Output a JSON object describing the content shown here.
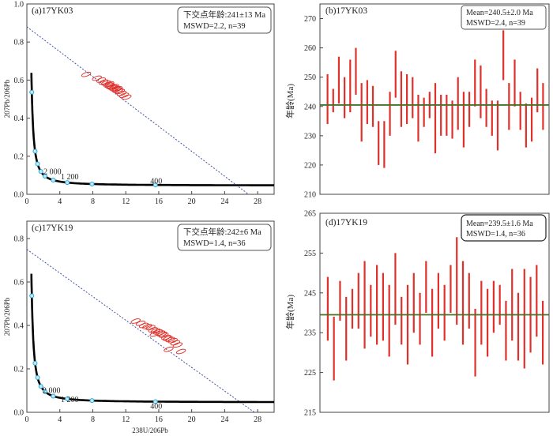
{
  "chart_data": [
    {
      "id": "a",
      "type": "scatter",
      "panel_label": "(a)17YK03",
      "box_lines": [
        "下交点年龄:241±13 Ma",
        "MSWD=2.2, n=39"
      ],
      "ylabel": "207Pb/206Pb",
      "xlabel": "",
      "xlim": [
        0,
        30
      ],
      "ylim": [
        0,
        1.0
      ],
      "xticks": [
        0,
        4,
        8,
        12,
        16,
        20,
        24,
        28
      ],
      "yticks": [
        0.0,
        0.2,
        0.4,
        0.6,
        0.8,
        1.0
      ],
      "ytick_labels": [
        "0.0",
        "0.2",
        "0.4",
        "0.6",
        "0.8",
        "1.0"
      ],
      "concordia_labels": [
        {
          "text": "2 000",
          "x": 3.1,
          "y": 0.105
        },
        {
          "text": "1 200",
          "x": 5.2,
          "y": 0.078
        },
        {
          "text": "400",
          "x": 15.7,
          "y": 0.055
        }
      ],
      "discordia": {
        "x": [
          0,
          26.9
        ],
        "y": [
          0.88,
          0
        ]
      },
      "ellipses": [
        {
          "x": 8.5,
          "y": 0.61
        },
        {
          "x": 9.0,
          "y": 0.6
        },
        {
          "x": 9.3,
          "y": 0.59
        },
        {
          "x": 9.6,
          "y": 0.585
        },
        {
          "x": 9.9,
          "y": 0.575
        },
        {
          "x": 10.1,
          "y": 0.57
        },
        {
          "x": 10.3,
          "y": 0.565
        },
        {
          "x": 10.5,
          "y": 0.56
        },
        {
          "x": 10.7,
          "y": 0.555
        },
        {
          "x": 10.9,
          "y": 0.55
        },
        {
          "x": 11.1,
          "y": 0.545
        },
        {
          "x": 11.3,
          "y": 0.54
        },
        {
          "x": 11.5,
          "y": 0.53
        },
        {
          "x": 11.8,
          "y": 0.52
        },
        {
          "x": 12.1,
          "y": 0.51
        },
        {
          "x": 10.0,
          "y": 0.58
        },
        {
          "x": 10.6,
          "y": 0.565
        },
        {
          "x": 11.0,
          "y": 0.555
        },
        {
          "x": 7.2,
          "y": 0.63
        }
      ]
    },
    {
      "id": "b",
      "type": "bar",
      "panel_label": "(b)17YK03",
      "box_lines": [
        "Mean=240.5±2.0 Ma",
        "MSWD=2.4, n=39"
      ],
      "ylabel": "年龄(Ma)",
      "ylim": [
        210,
        275
      ],
      "yticks": [
        210,
        220,
        230,
        240,
        250,
        260,
        270
      ],
      "mean": 240.5,
      "bars": [
        [
          234,
          251
        ],
        [
          238,
          246
        ],
        [
          241,
          257
        ],
        [
          236,
          250
        ],
        [
          238,
          256
        ],
        [
          244,
          260
        ],
        [
          228,
          248
        ],
        [
          234,
          249
        ],
        [
          233,
          247
        ],
        [
          220,
          235
        ],
        [
          219,
          235
        ],
        [
          230,
          245
        ],
        [
          243,
          259
        ],
        [
          233,
          252
        ],
        [
          234,
          251
        ],
        [
          236,
          250
        ],
        [
          228,
          244
        ],
        [
          233,
          243
        ],
        [
          236,
          245
        ],
        [
          224,
          248
        ],
        [
          230,
          244
        ],
        [
          230,
          244
        ],
        [
          229,
          242
        ],
        [
          232,
          250
        ],
        [
          226,
          245
        ],
        [
          233,
          245
        ],
        [
          240,
          256
        ],
        [
          236,
          254
        ],
        [
          233,
          246
        ],
        [
          230,
          242
        ],
        [
          225,
          242
        ],
        [
          249,
          266
        ],
        [
          232,
          248
        ],
        [
          240,
          256
        ],
        [
          232,
          245
        ],
        [
          226,
          241
        ],
        [
          228,
          243
        ],
        [
          238,
          253
        ],
        [
          232,
          248
        ]
      ]
    },
    {
      "id": "c",
      "type": "scatter",
      "panel_label": "(c)17YK19",
      "box_lines": [
        "下交点年龄:242±6 Ma",
        "MSWD=1.4, n=36"
      ],
      "ylabel": "207Pb/206Pb",
      "xlabel": "238U/206Pb",
      "xlim": [
        0,
        30
      ],
      "ylim": [
        0,
        0.88
      ],
      "xticks": [
        0,
        4,
        8,
        12,
        16,
        20,
        24,
        28
      ],
      "yticks": [
        0.0,
        0.2,
        0.4,
        0.6,
        0.8
      ],
      "ytick_labels": [
        "0.0",
        "0.2",
        "0.4",
        "0.6",
        "0.8"
      ],
      "concordia_labels": [
        {
          "text": "2 000",
          "x": 3.0,
          "y": 0.09
        },
        {
          "text": "1 200",
          "x": 5.2,
          "y": 0.047
        },
        {
          "text": "400",
          "x": 15.7,
          "y": 0.017
        }
      ],
      "discordia": {
        "x": [
          0,
          27.6
        ],
        "y": [
          0.75,
          0
        ]
      },
      "ellipses": [
        {
          "x": 13.2,
          "y": 0.42
        },
        {
          "x": 13.8,
          "y": 0.41
        },
        {
          "x": 14.2,
          "y": 0.4
        },
        {
          "x": 14.6,
          "y": 0.395
        },
        {
          "x": 15.0,
          "y": 0.39
        },
        {
          "x": 15.3,
          "y": 0.38
        },
        {
          "x": 15.6,
          "y": 0.375
        },
        {
          "x": 15.9,
          "y": 0.37
        },
        {
          "x": 16.2,
          "y": 0.365
        },
        {
          "x": 16.4,
          "y": 0.36
        },
        {
          "x": 16.6,
          "y": 0.355
        },
        {
          "x": 16.9,
          "y": 0.345
        },
        {
          "x": 17.1,
          "y": 0.34
        },
        {
          "x": 17.4,
          "y": 0.335
        },
        {
          "x": 17.7,
          "y": 0.33
        },
        {
          "x": 18.0,
          "y": 0.32
        },
        {
          "x": 18.3,
          "y": 0.31
        },
        {
          "x": 18.7,
          "y": 0.28
        },
        {
          "x": 17.2,
          "y": 0.29
        },
        {
          "x": 15.5,
          "y": 0.36
        }
      ]
    },
    {
      "id": "d",
      "type": "bar",
      "panel_label": "(d)17YK19",
      "box_lines": [
        "Mean=239.5±1.6 Ma",
        "MSWD=1.4, n=36"
      ],
      "ylabel": "年龄(Ma)",
      "ylim": [
        215,
        265
      ],
      "yticks": [
        215,
        225,
        235,
        245,
        255,
        265
      ],
      "mean": 239.5,
      "bars": [
        [
          233,
          249
        ],
        [
          223,
          239
        ],
        [
          238,
          248
        ],
        [
          228,
          244
        ],
        [
          236,
          246
        ],
        [
          236,
          250
        ],
        [
          231,
          253
        ],
        [
          234,
          247
        ],
        [
          232,
          252
        ],
        [
          233,
          250
        ],
        [
          229,
          247
        ],
        [
          237,
          255
        ],
        [
          232,
          244
        ],
        [
          227,
          247
        ],
        [
          235,
          250
        ],
        [
          232,
          245
        ],
        [
          240,
          253
        ],
        [
          229,
          246
        ],
        [
          236,
          250
        ],
        [
          233,
          247
        ],
        [
          240,
          252
        ],
        [
          237,
          259
        ],
        [
          232,
          253
        ],
        [
          236,
          250
        ],
        [
          224,
          241
        ],
        [
          232,
          248
        ],
        [
          229,
          246
        ],
        [
          235,
          248
        ],
        [
          237,
          247
        ],
        [
          228,
          243
        ],
        [
          233,
          251
        ],
        [
          228,
          245
        ],
        [
          226,
          251
        ],
        [
          230,
          249
        ],
        [
          234,
          252
        ],
        [
          227,
          243
        ]
      ]
    }
  ]
}
